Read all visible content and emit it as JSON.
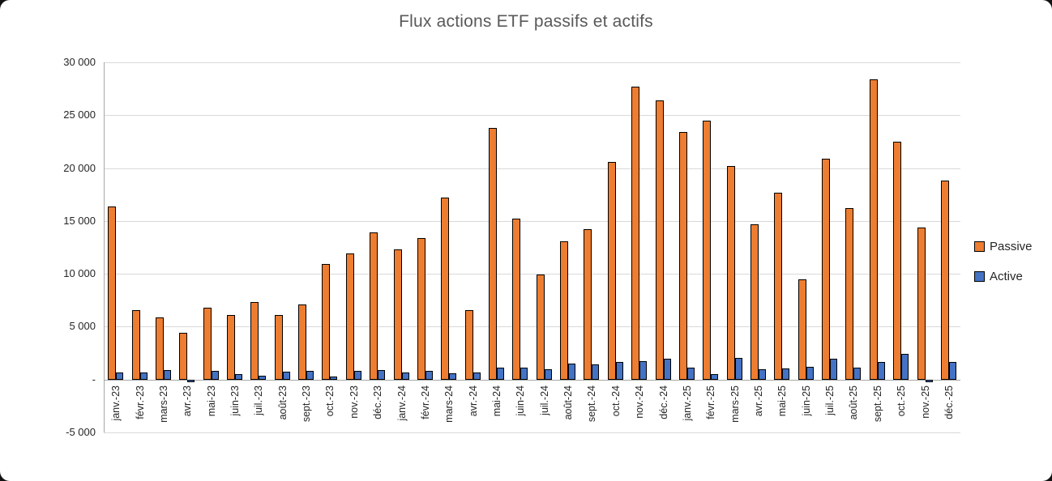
{
  "title": "Flux actions ETF passifs et actifs",
  "chart_data": {
    "type": "bar",
    "title": "Flux actions ETF passifs et actifs",
    "categories": [
      "janv.-23",
      "févr.-23",
      "mars-23",
      "avr.-23",
      "mai-23",
      "juin-23",
      "juil.-23",
      "août-23",
      "sept.-23",
      "oct.-23",
      "nov.-23",
      "déc.-23",
      "janv.-24",
      "févr.-24",
      "mars-24",
      "avr.-24",
      "mai-24",
      "juin-24",
      "juil.-24",
      "août-24",
      "sept.-24",
      "oct.-24",
      "nov.-24",
      "déc.-24",
      "janv.-25",
      "févr.-25",
      "mars-25",
      "avr.-25",
      "mai-25",
      "juin-25",
      "juil.-25",
      "août-25",
      "sept.-25",
      "oct.-25",
      "nov.-25",
      "déc.-25"
    ],
    "series": [
      {
        "name": "Passive",
        "color": "#ED7D31",
        "values": [
          16400,
          6600,
          5900,
          4400,
          6800,
          6100,
          7300,
          6100,
          7100,
          10900,
          11900,
          13900,
          12300,
          13400,
          17200,
          6600,
          23800,
          15200,
          9900,
          13100,
          14200,
          20600,
          27700,
          26400,
          23400,
          24500,
          20200,
          14700,
          17700,
          9500,
          20900,
          16200,
          28400,
          22500,
          14400,
          18800
        ]
      },
      {
        "name": "Active",
        "color": "#4472C4",
        "values": [
          650,
          700,
          900,
          -150,
          800,
          500,
          400,
          750,
          800,
          250,
          850,
          900,
          650,
          850,
          600,
          650,
          1150,
          1100,
          950,
          1500,
          1450,
          1650,
          1750,
          2000,
          1100,
          550,
          2050,
          1000,
          1050,
          1200,
          2000,
          1100,
          1700,
          2400,
          -200,
          1700
        ]
      }
    ],
    "ylim": [
      -5000,
      30000
    ],
    "y_ticks": [
      {
        "value": 30000,
        "label": "30 000"
      },
      {
        "value": 25000,
        "label": "25 000"
      },
      {
        "value": 20000,
        "label": "20 000"
      },
      {
        "value": 15000,
        "label": "15 000"
      },
      {
        "value": 10000,
        "label": "10 000"
      },
      {
        "value": 5000,
        "label": "5 000"
      },
      {
        "value": 0,
        "label": "-"
      },
      {
        "value": -5000,
        "label": "-5 000"
      }
    ],
    "grid": true,
    "legend_position": "right",
    "colors": {
      "title": "#595959",
      "text": "#262626",
      "gridline": "#D9D9D9",
      "axis_line": "#A6A6A6",
      "bar_border": "#000000"
    }
  }
}
